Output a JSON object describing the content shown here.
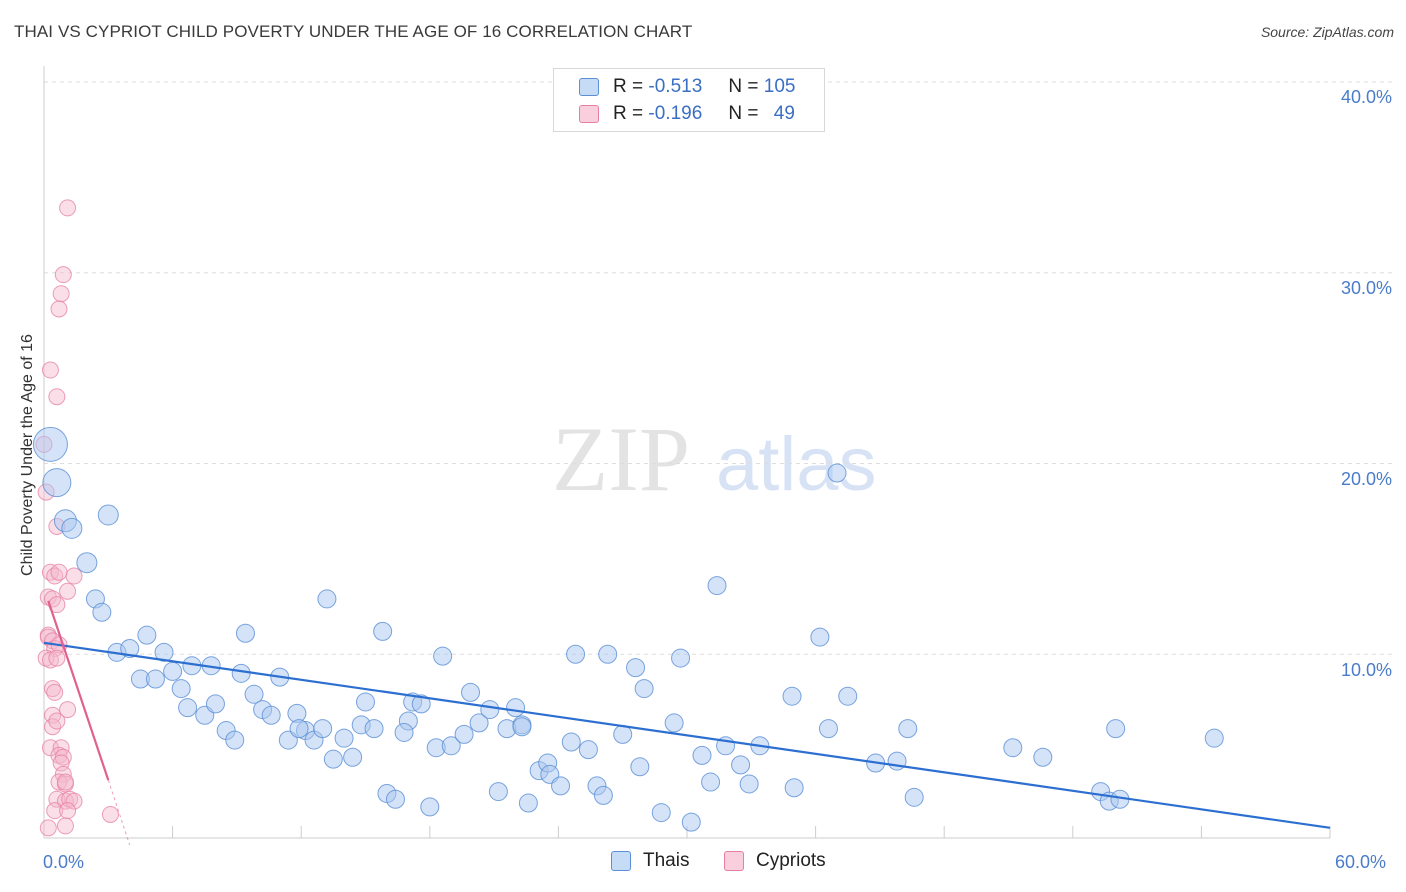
{
  "header": {
    "title": "THAI VS CYPRIOT CHILD POVERTY UNDER THE AGE OF 16 CORRELATION CHART",
    "source": "Source: ZipAtlas.com"
  },
  "watermark": {
    "zip": "ZIP",
    "atlas": "atlas"
  },
  "legend_top": [
    {
      "r_label": "R =",
      "r_value": "-0.513",
      "n_label": "N =",
      "n_value": "105",
      "color": "#a9c8f0"
    },
    {
      "r_label": "R =",
      "r_value": "-0.196",
      "n_label": "N =",
      "n_value": "49",
      "color": "#f5b8cc"
    }
  ],
  "legend_bottom": [
    {
      "label": "Thais",
      "color": "#a9c8f0"
    },
    {
      "label": "Cypriots",
      "color": "#f5b8cc"
    }
  ],
  "colors": {
    "thais_fill": "#a9c8f0",
    "thais_stroke": "#5b8fd6",
    "thais_trend": "#2c6fd1",
    "cypriots_fill": "#f5b8cc",
    "cypriots_stroke": "#e57fa3",
    "cypriots_trend": "#e0608f",
    "grid": "#dddddd",
    "axis_text": "#4a7cc9"
  },
  "chart_data": {
    "type": "scatter",
    "title": "THAI VS CYPRIOT CHILD POVERTY UNDER THE AGE OF 16 CORRELATION CHART",
    "xlabel": "",
    "ylabel": "Child Poverty Under the Age of 16",
    "xlim": [
      0,
      60
    ],
    "ylim": [
      0,
      40
    ],
    "x_tick_labels": [
      "0.0%",
      "60.0%"
    ],
    "y_ticks": [
      10,
      20,
      30,
      40
    ],
    "y_tick_labels": [
      "10.0%",
      "20.0%",
      "30.0%",
      "40.0%"
    ],
    "grid": true,
    "legend_position": "top-center",
    "series": [
      {
        "name": "Thais",
        "r": -0.513,
        "n": 105,
        "trend": {
          "x": [
            0,
            60
          ],
          "y": [
            10.6,
            0.9
          ]
        },
        "points": [
          [
            0.3,
            21.0,
            17
          ],
          [
            0.6,
            19.0,
            14
          ],
          [
            1.0,
            17.0,
            11
          ],
          [
            1.3,
            16.6,
            10
          ],
          [
            3.0,
            17.3,
            10
          ],
          [
            2.0,
            14.8,
            10
          ],
          [
            2.4,
            12.9,
            9
          ],
          [
            2.7,
            12.2,
            9
          ],
          [
            3.4,
            10.1,
            9
          ],
          [
            4.0,
            10.3,
            9
          ],
          [
            4.8,
            11.0,
            9
          ],
          [
            4.5,
            8.7,
            9
          ],
          [
            5.2,
            8.7,
            9
          ],
          [
            5.6,
            10.1,
            9
          ],
          [
            6.0,
            9.1,
            9
          ],
          [
            6.4,
            8.2,
            9
          ],
          [
            6.7,
            7.2,
            9
          ],
          [
            6.9,
            9.4,
            9
          ],
          [
            7.5,
            6.8,
            9
          ],
          [
            7.8,
            9.4,
            9
          ],
          [
            8.0,
            7.4,
            9
          ],
          [
            8.5,
            6.0,
            9
          ],
          [
            8.9,
            5.5,
            9
          ],
          [
            9.2,
            9.0,
            9
          ],
          [
            9.4,
            11.1,
            9
          ],
          [
            9.8,
            7.9,
            9
          ],
          [
            10.2,
            7.1,
            9
          ],
          [
            10.6,
            6.8,
            9
          ],
          [
            11.0,
            8.8,
            9
          ],
          [
            11.4,
            5.5,
            9
          ],
          [
            11.8,
            6.9,
            9
          ],
          [
            12.2,
            6.0,
            9
          ],
          [
            12.6,
            5.5,
            9
          ],
          [
            13.0,
            6.1,
            9
          ],
          [
            13.2,
            12.9,
            9
          ],
          [
            13.5,
            4.5,
            9
          ],
          [
            14.0,
            5.6,
            9
          ],
          [
            14.4,
            4.6,
            9
          ],
          [
            14.8,
            6.3,
            9
          ],
          [
            15.0,
            7.5,
            9
          ],
          [
            15.4,
            6.1,
            9
          ],
          [
            15.8,
            11.2,
            9
          ],
          [
            16.0,
            2.7,
            9
          ],
          [
            16.4,
            2.4,
            9
          ],
          [
            17.0,
            6.5,
            9
          ],
          [
            17.2,
            7.5,
            9
          ],
          [
            17.6,
            7.4,
            9
          ],
          [
            18.0,
            2.0,
            9
          ],
          [
            18.3,
            5.1,
            9
          ],
          [
            18.6,
            9.9,
            9
          ],
          [
            19.0,
            5.2,
            9
          ],
          [
            19.6,
            5.8,
            9
          ],
          [
            19.9,
            8.0,
            9
          ],
          [
            20.3,
            6.4,
            9
          ],
          [
            20.8,
            7.1,
            9
          ],
          [
            21.2,
            2.8,
            9
          ],
          [
            21.6,
            6.1,
            9
          ],
          [
            22.0,
            7.2,
            9
          ],
          [
            22.3,
            6.3,
            9
          ],
          [
            22.6,
            2.2,
            9
          ],
          [
            23.1,
            3.9,
            9
          ],
          [
            23.5,
            4.3,
            9
          ],
          [
            23.6,
            3.7,
            9
          ],
          [
            24.1,
            3.1,
            9
          ],
          [
            24.6,
            5.4,
            9
          ],
          [
            24.8,
            10.0,
            9
          ],
          [
            25.4,
            5.0,
            9
          ],
          [
            25.8,
            3.1,
            9
          ],
          [
            26.1,
            2.6,
            9
          ],
          [
            26.3,
            10.0,
            9
          ],
          [
            27.0,
            5.8,
            9
          ],
          [
            27.6,
            9.3,
            9
          ],
          [
            27.8,
            4.1,
            9
          ],
          [
            28.0,
            8.2,
            9
          ],
          [
            28.8,
            1.7,
            9
          ],
          [
            29.4,
            6.4,
            9
          ],
          [
            29.7,
            9.8,
            9
          ],
          [
            30.2,
            1.2,
            9
          ],
          [
            30.7,
            4.7,
            9
          ],
          [
            31.1,
            3.3,
            9
          ],
          [
            31.4,
            13.6,
            9
          ],
          [
            31.8,
            5.2,
            9
          ],
          [
            32.5,
            4.2,
            9
          ],
          [
            32.9,
            3.2,
            9
          ],
          [
            33.4,
            5.2,
            9
          ],
          [
            34.9,
            7.8,
            9
          ],
          [
            35.0,
            3.0,
            9
          ],
          [
            36.2,
            10.9,
            9
          ],
          [
            36.6,
            6.1,
            9
          ],
          [
            37.5,
            7.8,
            9
          ],
          [
            37.0,
            19.5,
            9
          ],
          [
            38.8,
            4.3,
            9
          ],
          [
            39.8,
            4.4,
            9
          ],
          [
            40.3,
            6.1,
            9
          ],
          [
            40.6,
            2.5,
            9
          ],
          [
            45.2,
            5.1,
            9
          ],
          [
            46.6,
            4.6,
            9
          ],
          [
            49.3,
            2.8,
            9
          ],
          [
            49.7,
            2.3,
            9
          ],
          [
            50.0,
            6.1,
            9
          ],
          [
            50.2,
            2.4,
            9
          ],
          [
            54.6,
            5.6,
            9
          ],
          [
            22.3,
            6.2,
            9
          ],
          [
            16.8,
            5.9,
            9
          ],
          [
            11.9,
            6.1,
            9
          ]
        ]
      },
      {
        "name": "Cypriots",
        "r": -0.196,
        "n": 49,
        "trend": {
          "x": [
            0.2,
            3.0
          ],
          "y": [
            12.8,
            3.4
          ]
        },
        "trend_dash": {
          "x": [
            3.0,
            4.0
          ],
          "y": [
            3.4,
            0.0
          ]
        },
        "points": [
          [
            1.1,
            33.4
          ],
          [
            0.9,
            29.9
          ],
          [
            0.8,
            28.9
          ],
          [
            0.7,
            28.1
          ],
          [
            0.3,
            24.9
          ],
          [
            0.6,
            23.5
          ],
          [
            0.0,
            21.0
          ],
          [
            0.1,
            18.5
          ],
          [
            0.6,
            16.7
          ],
          [
            0.3,
            14.3
          ],
          [
            0.5,
            14.1
          ],
          [
            0.7,
            14.3
          ],
          [
            1.4,
            14.1
          ],
          [
            1.1,
            13.3
          ],
          [
            0.2,
            13.0
          ],
          [
            0.4,
            12.9
          ],
          [
            0.6,
            12.6
          ],
          [
            0.2,
            11.0
          ],
          [
            0.2,
            10.9
          ],
          [
            0.4,
            10.7
          ],
          [
            0.5,
            10.3
          ],
          [
            0.7,
            10.5
          ],
          [
            0.1,
            9.8
          ],
          [
            0.3,
            9.7
          ],
          [
            0.6,
            9.8
          ],
          [
            0.4,
            8.2
          ],
          [
            0.5,
            8.0
          ],
          [
            1.1,
            7.1
          ],
          [
            0.4,
            6.8
          ],
          [
            0.4,
            6.2
          ],
          [
            0.6,
            6.5
          ],
          [
            0.3,
            5.1
          ],
          [
            0.8,
            5.1
          ],
          [
            0.7,
            4.7
          ],
          [
            0.9,
            4.6
          ],
          [
            0.8,
            4.3
          ],
          [
            0.9,
            3.7
          ],
          [
            0.7,
            3.3
          ],
          [
            1.0,
            3.2
          ],
          [
            0.6,
            2.4
          ],
          [
            1.0,
            2.3
          ],
          [
            1.2,
            2.4
          ],
          [
            1.4,
            2.3
          ],
          [
            0.5,
            1.8
          ],
          [
            1.1,
            1.8
          ],
          [
            1.0,
            1.0
          ],
          [
            3.1,
            1.6
          ],
          [
            0.2,
            0.9
          ],
          [
            1.0,
            3.3
          ]
        ]
      }
    ]
  }
}
